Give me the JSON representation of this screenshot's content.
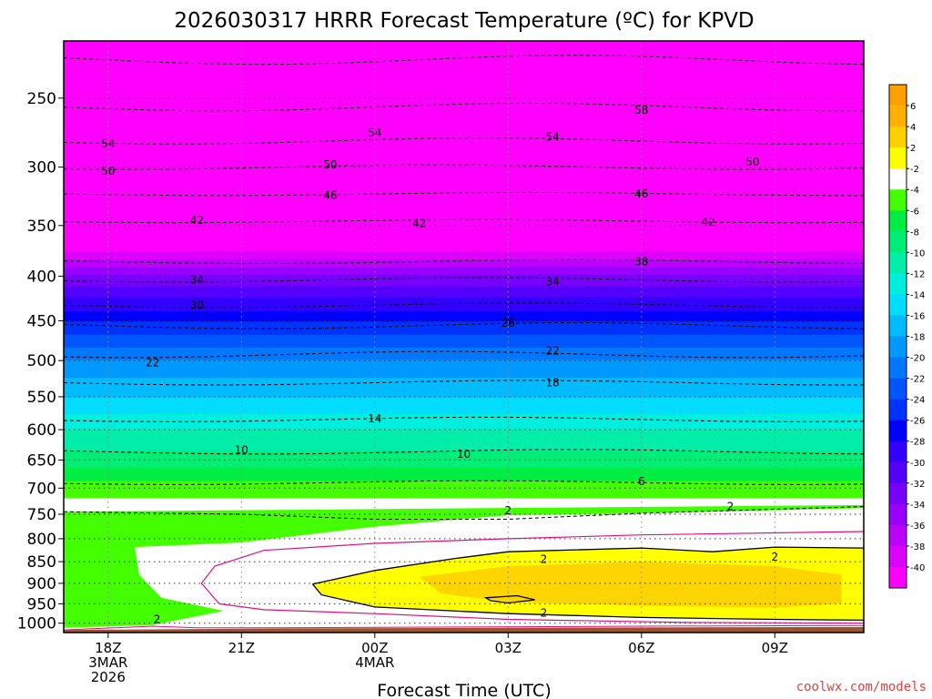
{
  "chart_data": {
    "type": "heatmap",
    "title": "2026030317 HRRR Forecast Temperature (ºC) for KPVD",
    "xlabel": "Forecast Time (UTC)",
    "ylabel": "",
    "x_ticks": [
      {
        "label": "18Z",
        "sub": [
          "3MAR",
          "2026"
        ],
        "hour": 0
      },
      {
        "label": "21Z",
        "sub": [],
        "hour": 3
      },
      {
        "label": "00Z",
        "sub": [
          "4MAR"
        ],
        "hour": 6
      },
      {
        "label": "03Z",
        "sub": [],
        "hour": 9
      },
      {
        "label": "06Z",
        "sub": [],
        "hour": 12
      },
      {
        "label": "09Z",
        "sub": [],
        "hour": 15
      }
    ],
    "xlim": [
      -1,
      17
    ],
    "y_axis": {
      "scale": "log",
      "ylim": [
        1025,
        215
      ],
      "inverted": true
    },
    "pressure_ticks": [
      250,
      300,
      350,
      400,
      450,
      500,
      550,
      600,
      650,
      700,
      750,
      800,
      850,
      900,
      950,
      1000
    ],
    "grid": true,
    "colorbar": {
      "labels": [
        "6",
        "4",
        "2",
        "-2",
        "-4",
        "-6",
        "-8",
        "-10",
        "-12",
        "-14",
        "-16",
        "-18",
        "-20",
        "-22",
        "-24",
        "-26",
        "-28",
        "-30",
        "-32",
        "-34",
        "-36",
        "-38",
        "-40"
      ],
      "colors": [
        "#ffb000",
        "#ffd000",
        "#ffff00",
        "#ffffff",
        "#44ff00",
        "#00ee44",
        "#00ee77",
        "#00eeaa",
        "#00eedd",
        "#00ddff",
        "#00bbff",
        "#0099ff",
        "#0077ff",
        "#0055ff",
        "#0033ff",
        "#0000ff",
        "#3300ff",
        "#5500ff",
        "#7700ff",
        "#9900ff",
        "#bb00ff",
        "#dd00ff",
        "#ff00ee"
      ]
    },
    "contour_labels": [
      {
        "text": "58",
        "hour": 12,
        "p": 258
      },
      {
        "text": "54",
        "hour": 0,
        "p": 282
      },
      {
        "text": "54",
        "hour": 6,
        "p": 274
      },
      {
        "text": "54",
        "hour": 10,
        "p": 277
      },
      {
        "text": "50",
        "hour": 0,
        "p": 303
      },
      {
        "text": "50",
        "hour": 5,
        "p": 298
      },
      {
        "text": "50",
        "hour": 14.5,
        "p": 296
      },
      {
        "text": "46",
        "hour": 5,
        "p": 323
      },
      {
        "text": "46",
        "hour": 12,
        "p": 322
      },
      {
        "text": "42",
        "hour": 2,
        "p": 345
      },
      {
        "text": "42",
        "hour": 7,
        "p": 348
      },
      {
        "text": "42",
        "hour": 13.5,
        "p": 347
      },
      {
        "text": "38",
        "hour": 12,
        "p": 385
      },
      {
        "text": "34",
        "hour": 2,
        "p": 404
      },
      {
        "text": "34",
        "hour": 10,
        "p": 406
      },
      {
        "text": "30",
        "hour": 2,
        "p": 432
      },
      {
        "text": "26",
        "hour": 9,
        "p": 453
      },
      {
        "text": "22",
        "hour": 1,
        "p": 503
      },
      {
        "text": "22",
        "hour": 10,
        "p": 487
      },
      {
        "text": "18",
        "hour": 10,
        "p": 530
      },
      {
        "text": "14",
        "hour": 6,
        "p": 583
      },
      {
        "text": "10",
        "hour": 3,
        "p": 633
      },
      {
        "text": "10",
        "hour": 8,
        "p": 640
      },
      {
        "text": "6",
        "hour": 12,
        "p": 688
      },
      {
        "text": "2",
        "hour": 9,
        "p": 743
      },
      {
        "text": "2",
        "hour": 14,
        "p": 735
      },
      {
        "text": "2",
        "hour": 9.8,
        "p": 845
      },
      {
        "text": "2",
        "hour": 15,
        "p": 840
      },
      {
        "text": "2",
        "hour": 9.8,
        "p": 973
      },
      {
        "text": "2",
        "hour": 1.1,
        "p": 990
      }
    ],
    "credit": "coolwx.com/models"
  }
}
